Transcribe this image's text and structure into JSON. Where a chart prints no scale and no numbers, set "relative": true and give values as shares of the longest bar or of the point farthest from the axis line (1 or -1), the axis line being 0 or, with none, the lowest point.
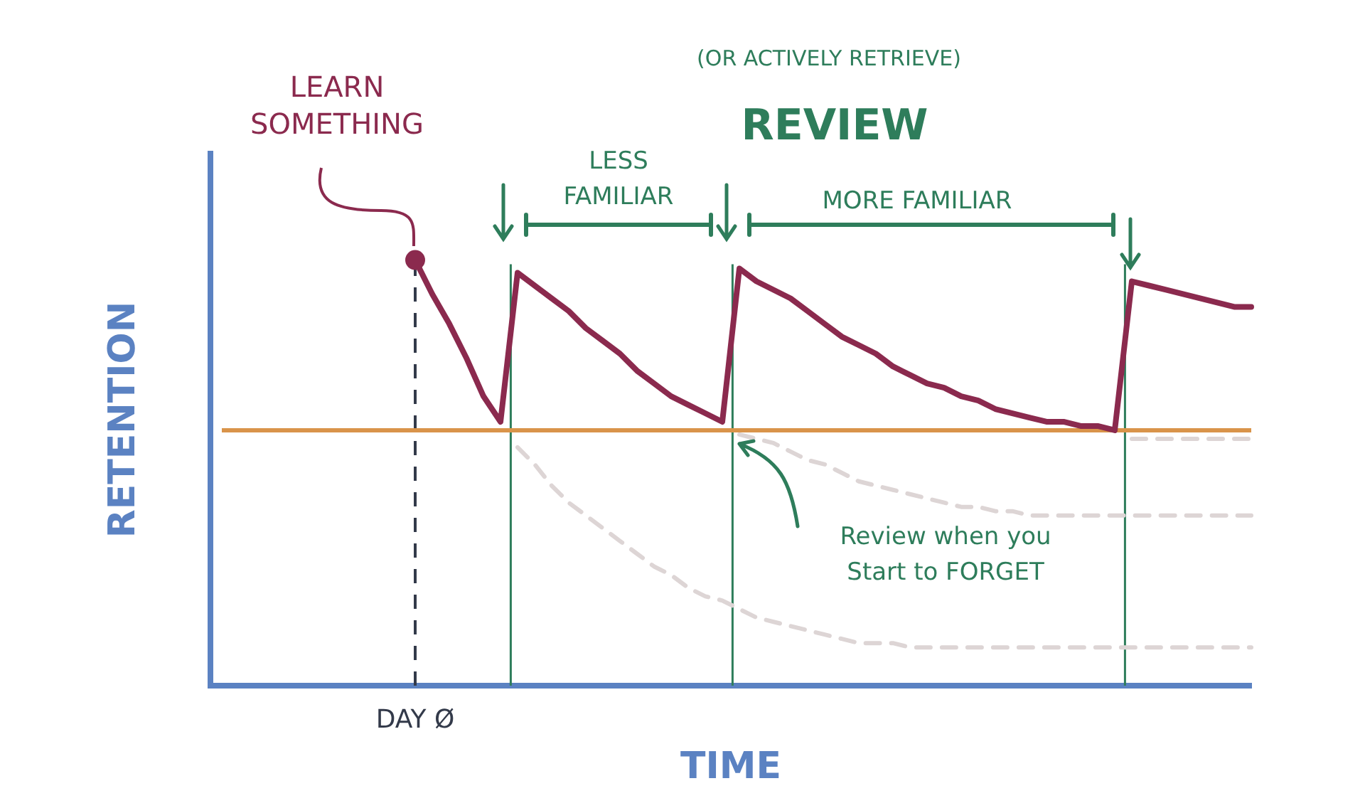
{
  "chart_data": {
    "type": "line",
    "relative": true,
    "xlabel": "TIME",
    "ylabel": "RETENTION",
    "marker": "none",
    "grid": false,
    "legend": false,
    "categories": [
      null,
      null,
      null,
      null,
      null,
      null,
      null,
      null,
      null,
      null,
      null,
      null,
      null,
      null,
      null,
      null,
      null,
      null,
      null,
      null,
      null,
      null,
      null,
      null,
      null,
      null,
      null,
      null,
      null,
      null,
      null,
      null,
      null,
      null,
      null,
      null,
      null,
      null,
      null,
      null,
      null,
      null,
      null,
      null,
      null,
      null,
      null,
      null,
      null,
      null,
      null,
      null,
      null,
      null,
      null,
      null,
      null,
      null,
      null,
      null,
      null,
      null
    ],
    "series": [
      {
        "color": "#8b2a4e",
        "line_style": "solid",
        "values": [
          null,
          null,
          null,
          null,
          null,
          null,
          null,
          null,
          null,
          null,
          null,
          null,
          1.0,
          0.92,
          0.85,
          0.77,
          0.68,
          0.62,
          0.97,
          0.94,
          0.91,
          0.88,
          0.84,
          0.81,
          0.78,
          0.74,
          0.71,
          0.68,
          0.66,
          0.64,
          0.62,
          0.98,
          0.95,
          0.93,
          0.91,
          0.88,
          0.85,
          0.82,
          0.8,
          0.78,
          0.75,
          0.73,
          0.71,
          0.7,
          0.68,
          0.67,
          0.65,
          0.64,
          0.63,
          0.62,
          0.62,
          0.61,
          0.61,
          0.6,
          0.95,
          0.94,
          0.93,
          0.92,
          0.91,
          0.9,
          0.89,
          0.89
        ]
      },
      {
        "color": "#ddd5d5",
        "line_style": "dashed",
        "values": [
          null,
          null,
          null,
          null,
          null,
          null,
          null,
          null,
          null,
          null,
          null,
          null,
          null,
          null,
          null,
          null,
          null,
          null,
          0.56,
          0.52,
          0.47,
          0.43,
          0.4,
          0.37,
          0.34,
          0.31,
          0.28,
          0.26,
          0.23,
          0.21,
          0.2,
          0.18,
          0.16,
          0.15,
          0.14,
          0.13,
          0.12,
          0.11,
          0.1,
          0.1,
          0.1,
          0.09,
          0.09,
          0.09,
          0.09,
          0.09,
          0.09,
          0.09,
          0.09,
          0.09,
          0.09,
          0.09,
          0.09,
          0.09,
          0.09,
          0.09,
          0.09,
          0.09,
          0.09,
          0.09,
          0.09,
          0.09
        ]
      },
      {
        "color": "#ddd5d5",
        "line_style": "dashed",
        "values": [
          null,
          null,
          null,
          null,
          null,
          null,
          null,
          null,
          null,
          null,
          null,
          null,
          null,
          null,
          null,
          null,
          null,
          null,
          null,
          null,
          null,
          null,
          null,
          null,
          null,
          null,
          null,
          null,
          null,
          null,
          null,
          0.59,
          0.58,
          0.57,
          0.55,
          0.53,
          0.52,
          0.5,
          0.48,
          0.47,
          0.46,
          0.45,
          0.44,
          0.43,
          0.42,
          0.42,
          0.41,
          0.41,
          0.4,
          0.4,
          0.4,
          0.4,
          0.4,
          0.4,
          0.4,
          0.4,
          0.4,
          0.4,
          0.4,
          0.4,
          0.4,
          0.4
        ]
      },
      {
        "color": "#ddd5d5",
        "line_style": "dashed",
        "values": [
          null,
          null,
          null,
          null,
          null,
          null,
          null,
          null,
          null,
          null,
          null,
          null,
          null,
          null,
          null,
          null,
          null,
          null,
          null,
          null,
          null,
          null,
          null,
          null,
          null,
          null,
          null,
          null,
          null,
          null,
          null,
          null,
          null,
          null,
          null,
          null,
          null,
          null,
          null,
          null,
          null,
          null,
          null,
          null,
          null,
          null,
          null,
          null,
          null,
          null,
          null,
          null,
          null,
          null,
          0.58,
          0.58,
          0.58,
          0.58,
          0.58,
          0.58,
          0.58,
          0.58
        ]
      }
    ],
    "ref_lines": [
      {
        "axis": "y",
        "value": 0.6,
        "color": "#d9944a",
        "line_style": "solid"
      }
    ],
    "annotations": [
      "LEARN\nSOMETHING",
      "DAY Ø",
      "(OR ACTIVELY RETRIEVE)",
      "REVIEW",
      "LESS\nFAMILIAR",
      "MORE FAMILIAR",
      "Review when you\nStart to FORGET"
    ]
  }
}
